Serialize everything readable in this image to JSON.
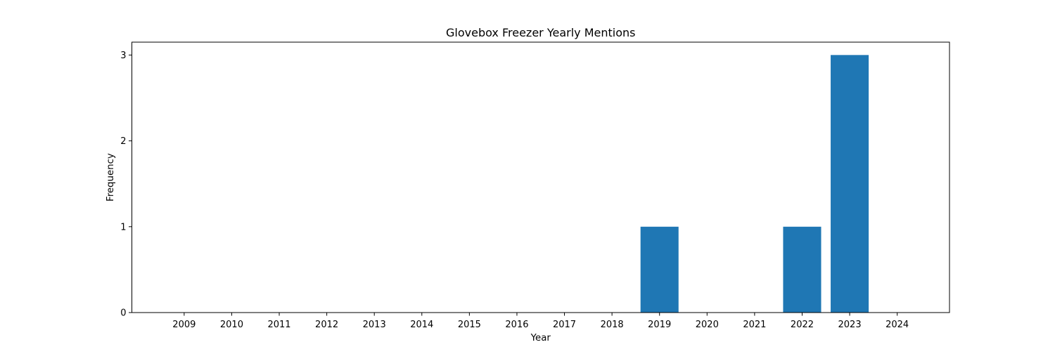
{
  "chart_data": {
    "type": "bar",
    "title": "Glovebox Freezer Yearly Mentions",
    "xlabel": "Year",
    "ylabel": "Frequency",
    "categories": [
      "2009",
      "2010",
      "2011",
      "2012",
      "2013",
      "2014",
      "2015",
      "2016",
      "2017",
      "2018",
      "2019",
      "2020",
      "2021",
      "2022",
      "2023",
      "2024"
    ],
    "values": [
      0,
      0,
      0,
      0,
      0,
      0,
      0,
      0,
      0,
      0,
      1,
      0,
      0,
      1,
      3,
      0
    ],
    "yticks": [
      "0",
      "1",
      "2",
      "3"
    ],
    "ylim": [
      0,
      3.15
    ],
    "grid": false,
    "legend": "none",
    "bar_color": "#1f77b4"
  }
}
